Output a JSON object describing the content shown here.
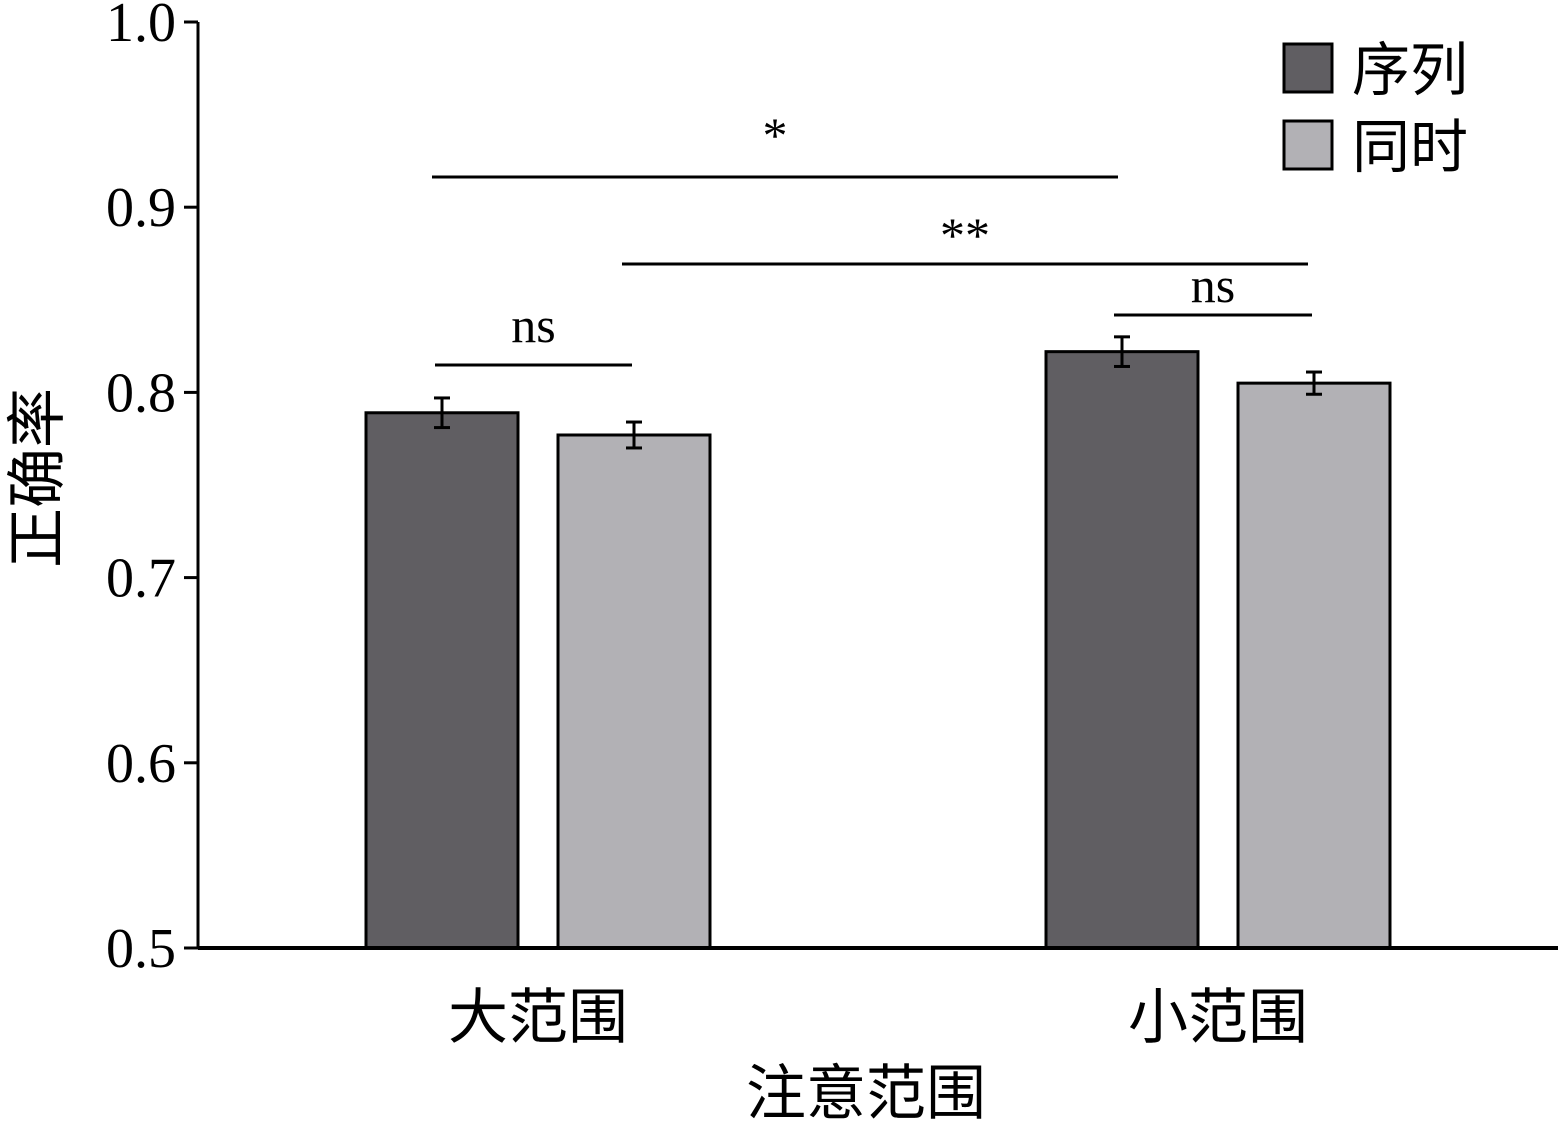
{
  "chart_data": {
    "type": "bar",
    "title": "",
    "xlabel": "注意范围",
    "ylabel": "正确率",
    "categories": [
      "大范围",
      "小范围"
    ],
    "ylim": [
      0.5,
      1.0
    ],
    "yticks": [
      "0.5",
      "0.6",
      "0.7",
      "0.8",
      "0.9",
      "1.0"
    ],
    "grid": false,
    "legend_position": "top-right",
    "series": [
      {
        "name": "序列",
        "values": [
          0.789,
          0.822
        ],
        "errors": [
          0.008,
          0.008
        ],
        "color": "#605e62"
      },
      {
        "name": "同时",
        "values": [
          0.777,
          0.805
        ],
        "errors": [
          0.007,
          0.006
        ],
        "color": "#b2b1b5"
      }
    ],
    "annotations": [
      {
        "label": "ns",
        "from": "大范围/序列",
        "to": "大范围/同时"
      },
      {
        "label": "*",
        "from": "大范围/序列",
        "to": "小范围/序列"
      },
      {
        "label": "**",
        "from": "大范围/同时",
        "to": "小范围/同时"
      },
      {
        "label": "ns",
        "from": "小范围/序列",
        "to": "小范围/同时"
      }
    ]
  }
}
